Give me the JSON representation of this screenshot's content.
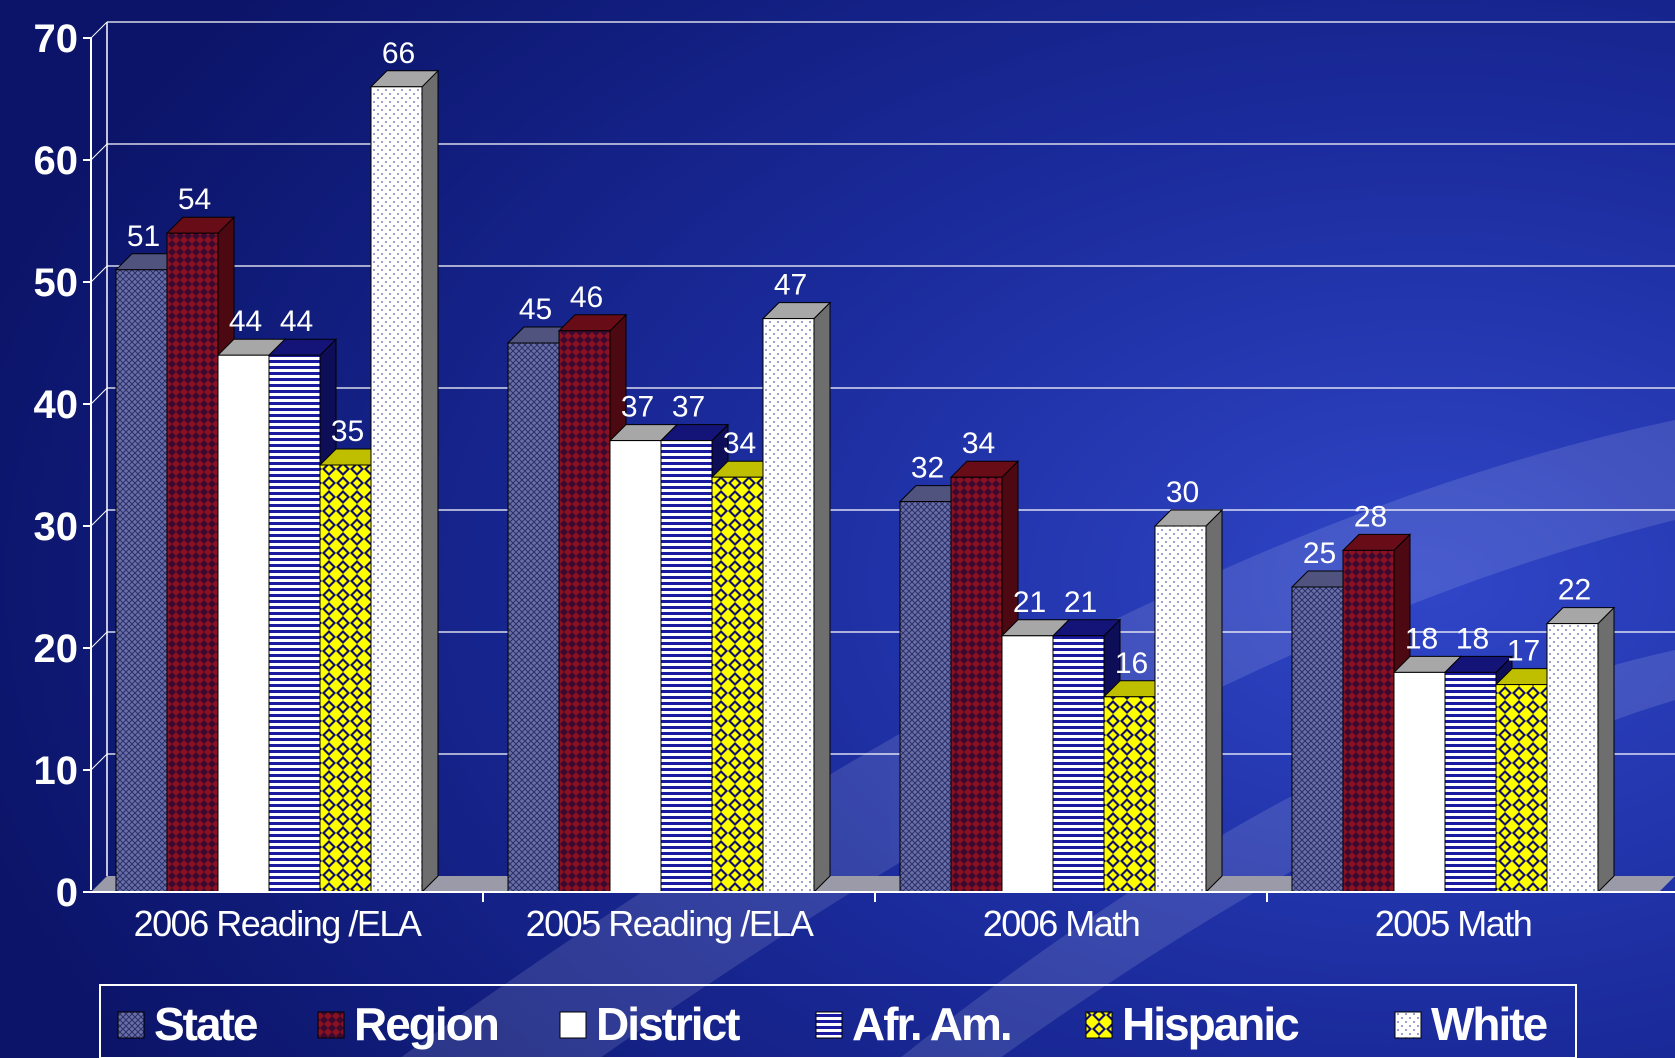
{
  "chart_data": {
    "type": "bar",
    "title": "",
    "xlabel": "",
    "ylabel": "",
    "ylim": [
      0,
      70
    ],
    "yticks": [
      0,
      10,
      20,
      30,
      40,
      50,
      60,
      70
    ],
    "grid": true,
    "legend_position": "bottom",
    "categories": [
      "2006 Reading /ELA",
      "2005 Reading /ELA",
      "2006 Math",
      "2005 Math"
    ],
    "series": [
      {
        "name": "State",
        "values": [
          51,
          45,
          32,
          25
        ],
        "color": "#6a6fa8",
        "pattern": "crosshatch"
      },
      {
        "name": "Region",
        "values": [
          54,
          46,
          34,
          28
        ],
        "color": "#8b1020",
        "pattern": "checker"
      },
      {
        "name": "District",
        "values": [
          44,
          37,
          21,
          18
        ],
        "color": "#ffffff",
        "pattern": "solid"
      },
      {
        "name": "Afr. Am.",
        "values": [
          44,
          37,
          21,
          18
        ],
        "color": "#1a1aa0",
        "pattern": "hstripes"
      },
      {
        "name": "Hispanic",
        "values": [
          35,
          34,
          16,
          17
        ],
        "color": "#ffff00",
        "pattern": "diamonds"
      },
      {
        "name": "White",
        "values": [
          66,
          47,
          30,
          22
        ],
        "color": "#ffffff",
        "pattern": "dots"
      }
    ]
  },
  "colors": {
    "background": "#0e1a7a",
    "text": "#ffffff",
    "grid": "#ffffff"
  }
}
